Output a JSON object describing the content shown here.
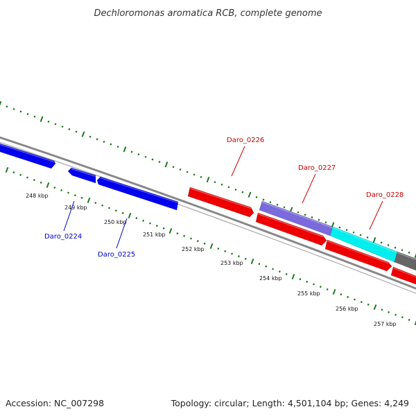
{
  "title": "Dechloromonas aromatica RCB, complete genome",
  "footer": {
    "accession": "Accession: NC_007298",
    "summary": "Topology: circular; Length: 4,501,104 bp; Genes: 4,249"
  },
  "colors": {
    "backbone": "#808080",
    "tick": "#1a7a1a",
    "blue_gene": "#0000ee",
    "red_gene": "#ee0000",
    "purple_gene": "#7a6adc",
    "cyan_gene": "#00eeee",
    "gray_gene": "#666666",
    "label_blue": "#0000cc",
    "label_red": "#cc0000"
  },
  "kbp_labels": [
    "248 kbp",
    "249 kbp",
    "250 kbp",
    "251 kbp",
    "252 kbp",
    "253 kbp",
    "254 kbp",
    "255 kbp",
    "256 kbp",
    "257 kbp"
  ],
  "genes": [
    {
      "id": "blue1",
      "strand": "forward",
      "color": "blue_gene"
    },
    {
      "id": "Daro_0224",
      "strand": "reverse",
      "color": "blue_gene",
      "label": "Daro_0224"
    },
    {
      "id": "Daro_0225",
      "strand": "forward",
      "color": "blue_gene",
      "label": "Daro_0225"
    },
    {
      "id": "Daro_0226",
      "strand": "forward",
      "color": "red_gene",
      "label": "Daro_0226"
    },
    {
      "id": "red2",
      "strand": "forward",
      "color": "red_gene"
    },
    {
      "id": "red3",
      "strand": "forward",
      "color": "red_gene"
    },
    {
      "id": "red4",
      "strand": "forward",
      "color": "red_gene"
    },
    {
      "id": "Daro_0227",
      "strand": "none",
      "color": "purple_gene",
      "label": "Daro_0227"
    },
    {
      "id": "Daro_0228",
      "strand": "none",
      "color": "cyan_gene",
      "label": "Daro_0228"
    },
    {
      "id": "gray1",
      "strand": "none",
      "color": "gray_gene"
    }
  ]
}
